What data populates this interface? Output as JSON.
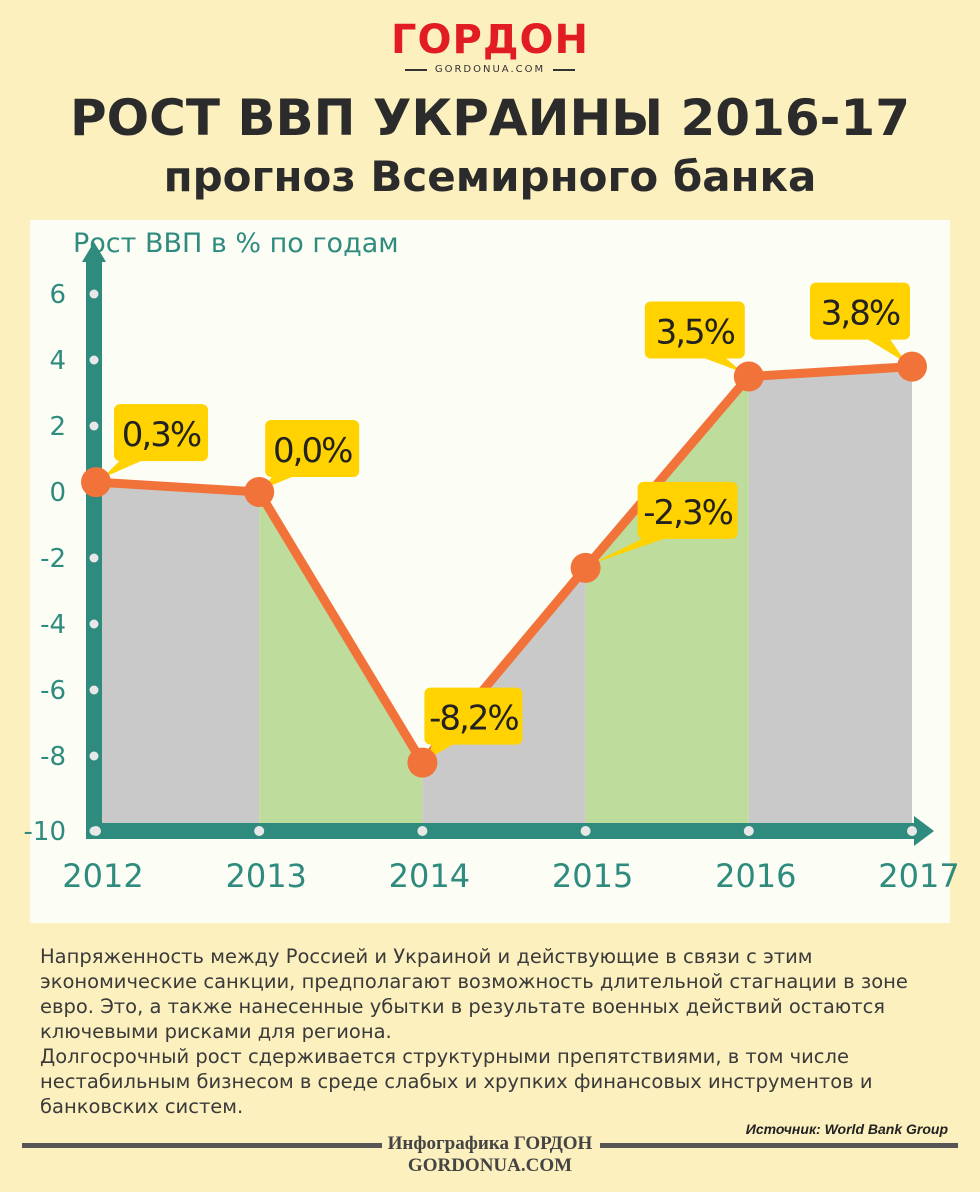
{
  "logo": {
    "name": "ГОРДОН",
    "site": "GORDONUA.COM"
  },
  "header": {
    "title": "РОСТ ВВП УКРАИНЫ 2016-17",
    "subtitle": "прогноз Всемирного банка"
  },
  "chart_data": {
    "type": "line",
    "ylabel": "Рост ВВП в % по годам",
    "xlabel": "",
    "x": [
      "2012",
      "2013",
      "2014",
      "2015",
      "2016",
      "2017"
    ],
    "y": [
      0.3,
      0.0,
      -8.2,
      -2.3,
      3.5,
      3.8
    ],
    "data_labels": [
      "0,3%",
      "0,0%",
      "-8,2%",
      "-2,3%",
      "3,5%",
      "3,8%"
    ],
    "y_ticks": [
      "6",
      "4",
      "2",
      "0",
      "-2",
      "-4",
      "-6",
      "-8",
      "-10"
    ],
    "ylim": [
      -10,
      6
    ],
    "grid": false,
    "colors": {
      "line": "#f2733a",
      "axis": "#2e8b7d",
      "area_gray": "#c9c9c9",
      "area_green": "#bedc9c",
      "label_box": "#ffd200"
    }
  },
  "description": [
    "Напряженность между Россией и Украиной и действующие в связи с этим экономические санкции, предполагают возможность длительной стагнации в зоне евро. Это, а также нанесенные убытки в результате военных действий остаются ключевыми рисками для региона.",
    "Долгосрочный рост сдерживается структурными препятствиями, в том числе нестабильным бизнесом в среде слабых и хрупких финансовых инструментов и банковских систем."
  ],
  "source": "Источник: World Bank Group",
  "footer": {
    "line1": "Инфографика ГОРДОН",
    "line2": "GORDONUA.COM"
  }
}
